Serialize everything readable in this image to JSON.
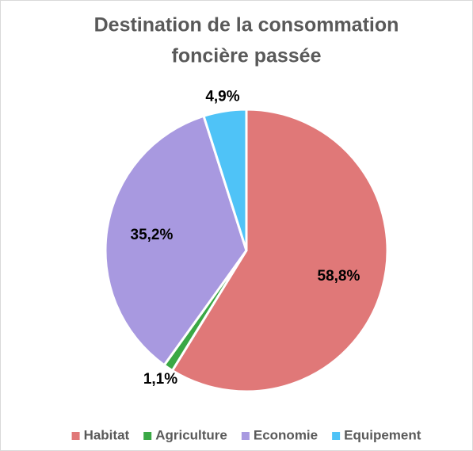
{
  "chart_data": {
    "type": "pie",
    "title": [
      "Destination de la consommation",
      "foncière passée"
    ],
    "categories": [
      "Habitat",
      "Agriculture",
      "Economie",
      "Equipement"
    ],
    "values": [
      58.8,
      1.1,
      35.2,
      4.9
    ],
    "value_labels": [
      "58,8%",
      "1,1%",
      "35,2%",
      "4,9%"
    ],
    "colors": [
      "#e07878",
      "#3aa845",
      "#a899e0",
      "#4fc3f7"
    ],
    "legend": "bottom"
  }
}
